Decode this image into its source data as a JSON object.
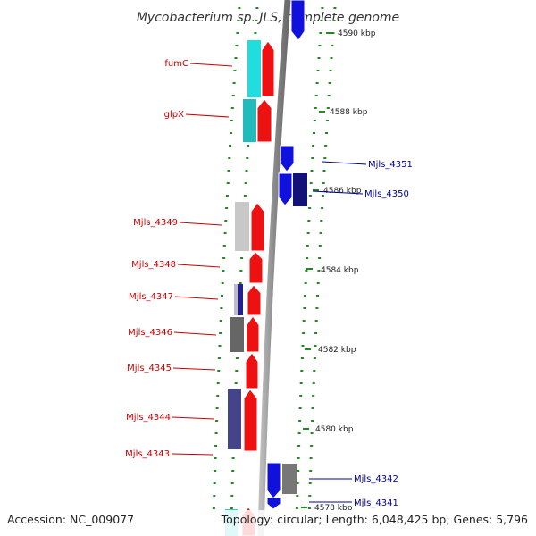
{
  "title": "Mycobacterium sp. JLS, complete genome",
  "footer": {
    "accession": "Accession: NC_009077",
    "summary": "Topology: circular; Length: 6,048,425 bp; Genes: 5,796"
  },
  "ticks": [
    "4590 kbp",
    "4588 kbp",
    "4586 kbp",
    "4584 kbp",
    "4582 kbp",
    "4580 kbp",
    "4578 kbp"
  ],
  "left_labels": [
    "fumC",
    "glpX",
    "Mjls_4349",
    "Mjls_4348",
    "Mjls_4347",
    "Mjls_4346",
    "Mjls_4345",
    "Mjls_4344",
    "Mjls_4343"
  ],
  "right_labels": [
    "Mjls_4351",
    "Mjls_4350",
    "Mjls_4342",
    "Mjls_4341"
  ],
  "colors": {
    "forward_strand": "#ee1111",
    "reverse_strand": "#1111dd",
    "label_left": "#cc0000",
    "label_right": "#000099",
    "dots": "#228822",
    "backbone": "#888888"
  }
}
